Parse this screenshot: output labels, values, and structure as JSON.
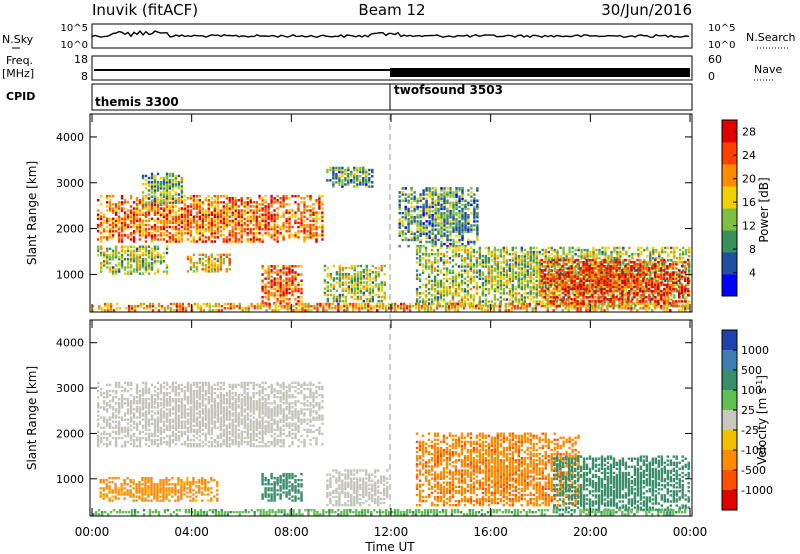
{
  "header": {
    "station": "Inuvik (fitACF)",
    "beam": "Beam 12",
    "date": "30/Jun/2016"
  },
  "status_panels": {
    "nsky_label": "N.Sky",
    "nsky_ticks": [
      "10^5",
      "10^0"
    ],
    "nsearch_label": "N.Search",
    "nsearch_ticks": [
      "10^5",
      "10^0"
    ],
    "freq_label": "Freq.",
    "freq_unit": "[MHz]",
    "freq_ticks": [
      "18",
      "8"
    ],
    "nave_label": "Nave",
    "nave_ticks": [
      "60",
      "0"
    ],
    "cpid_label": "CPID",
    "cpid_modes": [
      {
        "name": "themis 3300",
        "start_hour": 0
      },
      {
        "name": "twofsound 3503",
        "start_hour": 12
      }
    ]
  },
  "colors": {
    "power_scale": [
      "#0000ff",
      "#204fa0",
      "#3a8f5a",
      "#80c040",
      "#f0d000",
      "#ff8c00",
      "#ff4000",
      "#e00000"
    ],
    "velocity_scale": [
      "#2040b0",
      "#3d7fb0",
      "#3a8f6a",
      "#60c050",
      "#c8c8c0",
      "#f0c000",
      "#ff8c00",
      "#ff5000",
      "#e00000"
    ],
    "ground_scatter": "#c4c4bc"
  },
  "chart_data": [
    {
      "type": "heatmap",
      "panel": "power",
      "ylabel": "Slant Range [km]",
      "xlabel": "Time UT",
      "ylim": [
        180,
        4500
      ],
      "xlim_hours": [
        0,
        24
      ],
      "y_ticks": [
        "1000",
        "2000",
        "3000",
        "4000"
      ],
      "x_ticks": [
        "00:00",
        "04:00",
        "08:00",
        "12:00",
        "16:00",
        "20:00",
        "00:00"
      ],
      "colorbar_label": "Power [dB]",
      "colorbar_ticks": [
        "4",
        "8",
        "12",
        "16",
        "20",
        "24",
        "28"
      ],
      "colorbar_range": [
        0,
        30
      ],
      "regions": [
        {
          "t": [
            0.2,
            9.3
          ],
          "r": [
            1700,
            2700
          ],
          "v": 22
        },
        {
          "t": [
            2.0,
            3.6
          ],
          "r": [
            2500,
            3200
          ],
          "v": 12
        },
        {
          "t": [
            0.2,
            3.0
          ],
          "r": [
            1000,
            1600
          ],
          "v": 14
        },
        {
          "t": [
            3.8,
            5.5
          ],
          "r": [
            1050,
            1450
          ],
          "v": 18
        },
        {
          "t": [
            6.8,
            8.4
          ],
          "r": [
            350,
            1200
          ],
          "v": 24
        },
        {
          "t": [
            9.3,
            11.8
          ],
          "r": [
            400,
            1200
          ],
          "v": 14
        },
        {
          "t": [
            9.4,
            11.3
          ],
          "r": [
            2900,
            3350
          ],
          "v": 10
        },
        {
          "t": [
            12.3,
            15.5
          ],
          "r": [
            1600,
            2900
          ],
          "v": 10
        },
        {
          "t": [
            13.0,
            24.0
          ],
          "r": [
            300,
            1600
          ],
          "v": 14
        },
        {
          "t": [
            18.0,
            24.0
          ],
          "r": [
            350,
            1300
          ],
          "v": 26
        },
        {
          "t": [
            0.0,
            24.0
          ],
          "r": [
            200,
            360
          ],
          "v": 20
        }
      ]
    },
    {
      "type": "heatmap",
      "panel": "velocity",
      "ylabel": "Slant Range [km]",
      "xlabel": "Time UT",
      "ylim": [
        180,
        4500
      ],
      "xlim_hours": [
        0,
        24
      ],
      "y_ticks": [
        "1000",
        "2000",
        "3000",
        "4000"
      ],
      "x_ticks": [
        "00:00",
        "04:00",
        "08:00",
        "12:00",
        "16:00",
        "20:00",
        "00:00"
      ],
      "colorbar_label": "Velocity [m s",
      "colorbar_label_sup": "-1",
      "colorbar_label_end": "]",
      "colorbar_ticks": [
        "1000",
        "500",
        "100",
        "25",
        "-25",
        "-100",
        "-500",
        "-1000"
      ],
      "regions": [
        {
          "t": [
            0.2,
            9.3
          ],
          "r": [
            1700,
            3100
          ],
          "v": 0
        },
        {
          "t": [
            9.4,
            11.8
          ],
          "r": [
            400,
            1200
          ],
          "v": 0
        },
        {
          "t": [
            6.8,
            8.4
          ],
          "r": [
            500,
            1100
          ],
          "v": 300
        },
        {
          "t": [
            0.3,
            5.0
          ],
          "r": [
            500,
            1000
          ],
          "v": -150
        },
        {
          "t": [
            13.0,
            19.5
          ],
          "r": [
            400,
            2000
          ],
          "v": -400
        },
        {
          "t": [
            18.5,
            24.0
          ],
          "r": [
            300,
            1500
          ],
          "v": 200
        },
        {
          "t": [
            0.0,
            24.0
          ],
          "r": [
            200,
            300
          ],
          "v": 80
        }
      ]
    }
  ],
  "x_axis_title": "Time UT"
}
